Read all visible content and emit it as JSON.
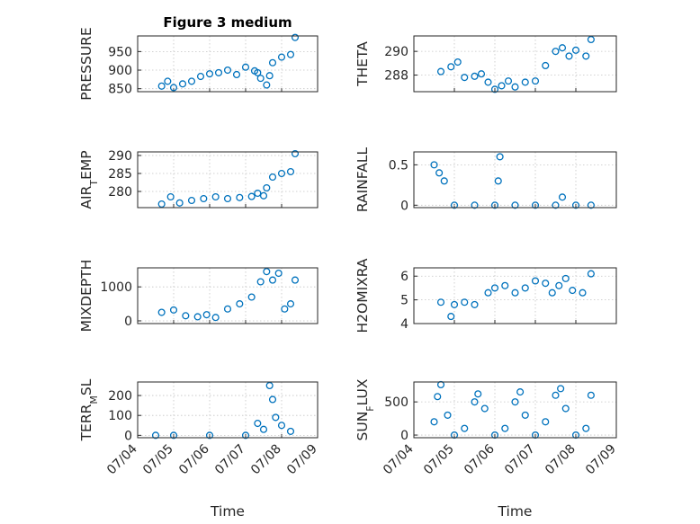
{
  "chart_data": [
    {
      "id": "pressure",
      "type": "scatter",
      "title": "Figure 3 medium",
      "ylabel_parts": [
        [
          "PRESSURE",
          false
        ]
      ],
      "yticks": [
        850,
        900,
        950
      ],
      "ylim": [
        842,
        992
      ],
      "x": [
        "07/04 16:00",
        "07/04 20:00",
        "07/05 00:00",
        "07/05 06:00",
        "07/05 12:00",
        "07/05 18:00",
        "07/06 00:00",
        "07/06 06:00",
        "07/06 12:00",
        "07/06 18:00",
        "07/07 00:00",
        "07/07 06:00",
        "07/07 08:00",
        "07/07 10:00",
        "07/07 14:00",
        "07/07 16:00",
        "07/07 18:00",
        "07/08 00:00",
        "07/08 06:00",
        "07/08 09:00"
      ],
      "y": [
        857,
        870,
        853,
        863,
        870,
        883,
        890,
        893,
        900,
        888,
        908,
        898,
        893,
        878,
        860,
        885,
        920,
        935,
        942,
        988
      ]
    },
    {
      "id": "theta",
      "type": "scatter",
      "title": "",
      "ylabel_parts": [
        [
          "THETA",
          false
        ]
      ],
      "yticks": [
        288,
        290
      ],
      "ylim": [
        286.6,
        291.3
      ],
      "x": [
        "07/04 16:00",
        "07/04 22:00",
        "07/05 02:00",
        "07/05 06:00",
        "07/05 12:00",
        "07/05 16:00",
        "07/05 20:00",
        "07/06 00:00",
        "07/06 04:00",
        "07/06 08:00",
        "07/06 12:00",
        "07/06 18:00",
        "07/07 00:00",
        "07/07 06:00",
        "07/07 12:00",
        "07/07 16:00",
        "07/07 20:00",
        "07/08 00:00",
        "07/08 06:00",
        "07/08 09:00"
      ],
      "y": [
        288.3,
        288.7,
        289.1,
        287.8,
        287.9,
        288.1,
        287.4,
        286.8,
        287.1,
        287.5,
        287.0,
        287.4,
        287.5,
        288.8,
        290.0,
        290.3,
        289.6,
        290.1,
        289.6,
        291.0
      ]
    },
    {
      "id": "air_temp",
      "type": "scatter",
      "title": "",
      "ylabel_parts": [
        [
          "AIR",
          false
        ],
        [
          "T",
          true
        ],
        [
          "EMP",
          false
        ]
      ],
      "yticks": [
        280,
        285,
        290
      ],
      "ylim": [
        275.5,
        291
      ],
      "x": [
        "07/04 16:00",
        "07/04 22:00",
        "07/05 04:00",
        "07/05 12:00",
        "07/05 20:00",
        "07/06 04:00",
        "07/06 12:00",
        "07/06 20:00",
        "07/07 04:00",
        "07/07 08:00",
        "07/07 12:00",
        "07/07 14:00",
        "07/07 18:00",
        "07/08 00:00",
        "07/08 06:00",
        "07/08 09:00"
      ],
      "y": [
        276.5,
        278.5,
        276.8,
        277.5,
        278.0,
        278.5,
        278.0,
        278.3,
        278.6,
        279.5,
        278.8,
        281.0,
        284.0,
        285.0,
        285.5,
        290.5
      ]
    },
    {
      "id": "rainfall",
      "type": "scatter",
      "title": "",
      "ylabel_parts": [
        [
          "RAINFALL",
          false
        ]
      ],
      "yticks": [
        0,
        0.5
      ],
      "ylim": [
        -0.03,
        0.66
      ],
      "x": [
        "07/04 12:00",
        "07/04 15:00",
        "07/04 18:00",
        "07/05 00:00",
        "07/05 12:00",
        "07/06 00:00",
        "07/06 02:00",
        "07/06 03:00",
        "07/06 12:00",
        "07/07 00:00",
        "07/07 12:00",
        "07/07 16:00",
        "07/08 00:00",
        "07/08 09:00"
      ],
      "y": [
        0.5,
        0.4,
        0.3,
        0,
        0,
        0,
        0.3,
        0.6,
        0,
        0,
        0,
        0.1,
        0,
        0
      ]
    },
    {
      "id": "mixdepth",
      "type": "scatter",
      "title": "",
      "ylabel_parts": [
        [
          "MIXDEPTH",
          false
        ]
      ],
      "yticks": [
        0,
        1000
      ],
      "ylim": [
        -80,
        1560
      ],
      "x": [
        "07/04 16:00",
        "07/05 00:00",
        "07/05 08:00",
        "07/05 16:00",
        "07/05 22:00",
        "07/06 04:00",
        "07/06 12:00",
        "07/06 20:00",
        "07/07 04:00",
        "07/07 10:00",
        "07/07 14:00",
        "07/07 18:00",
        "07/07 22:00",
        "07/08 02:00",
        "07/08 06:00",
        "07/08 09:00"
      ],
      "y": [
        250,
        320,
        150,
        120,
        180,
        100,
        350,
        500,
        700,
        1150,
        1450,
        1200,
        1400,
        350,
        500,
        1200
      ]
    },
    {
      "id": "h2omixra",
      "type": "scatter",
      "title": "",
      "ylabel_parts": [
        [
          "H2OMIXRA",
          false
        ]
      ],
      "yticks": [
        4,
        5,
        6
      ],
      "ylim": [
        4,
        6.35
      ],
      "x": [
        "07/04 16:00",
        "07/04 22:00",
        "07/05 00:00",
        "07/05 06:00",
        "07/05 12:00",
        "07/05 20:00",
        "07/06 00:00",
        "07/06 06:00",
        "07/06 12:00",
        "07/06 18:00",
        "07/07 00:00",
        "07/07 06:00",
        "07/07 10:00",
        "07/07 14:00",
        "07/07 18:00",
        "07/07 22:00",
        "07/08 04:00",
        "07/08 09:00"
      ],
      "y": [
        4.9,
        4.3,
        4.8,
        4.9,
        4.8,
        5.3,
        5.5,
        5.6,
        5.3,
        5.5,
        5.8,
        5.7,
        5.3,
        5.6,
        5.9,
        5.4,
        5.3,
        6.1
      ]
    },
    {
      "id": "terr_msl",
      "type": "scatter",
      "title": "",
      "ylabel_parts": [
        [
          "TERR",
          false
        ],
        [
          "M",
          true
        ],
        [
          "SL",
          false
        ]
      ],
      "yticks": [
        0,
        100,
        200
      ],
      "ylim": [
        -12,
        268
      ],
      "x": [
        "07/04 12:00",
        "07/05 00:00",
        "07/06 00:00",
        "07/07 00:00",
        "07/07 08:00",
        "07/07 12:00",
        "07/07 16:00",
        "07/07 18:00",
        "07/07 20:00",
        "07/08 00:00",
        "07/08 06:00"
      ],
      "y": [
        0,
        0,
        0,
        0,
        60,
        30,
        250,
        180,
        90,
        50,
        20
      ]
    },
    {
      "id": "sun_flux",
      "type": "scatter",
      "title": "",
      "ylabel_parts": [
        [
          "SUN",
          false
        ],
        [
          "F",
          true
        ],
        [
          "LUX",
          false
        ]
      ],
      "yticks": [
        0,
        500
      ],
      "ylim": [
        -40,
        800
      ],
      "x": [
        "07/04 12:00",
        "07/04 14:00",
        "07/04 16:00",
        "07/04 20:00",
        "07/05 00:00",
        "07/05 06:00",
        "07/05 12:00",
        "07/05 14:00",
        "07/05 18:00",
        "07/06 00:00",
        "07/06 06:00",
        "07/06 12:00",
        "07/06 15:00",
        "07/06 18:00",
        "07/07 00:00",
        "07/07 06:00",
        "07/07 12:00",
        "07/07 15:00",
        "07/07 18:00",
        "07/08 00:00",
        "07/08 06:00",
        "07/08 09:00"
      ],
      "y": [
        200,
        580,
        760,
        300,
        0,
        100,
        500,
        620,
        400,
        0,
        100,
        500,
        650,
        300,
        0,
        200,
        600,
        700,
        400,
        0,
        100,
        600
      ]
    }
  ],
  "shared_x": {
    "label": "Time",
    "ticks": [
      "07/04",
      "07/05",
      "07/06",
      "07/07",
      "07/08",
      "07/09"
    ],
    "range": [
      "07/04",
      "07/09"
    ]
  },
  "style": {
    "marker_color": "#0072BD",
    "axis_color": "#262626",
    "grid_color": "#c4c4c4"
  }
}
